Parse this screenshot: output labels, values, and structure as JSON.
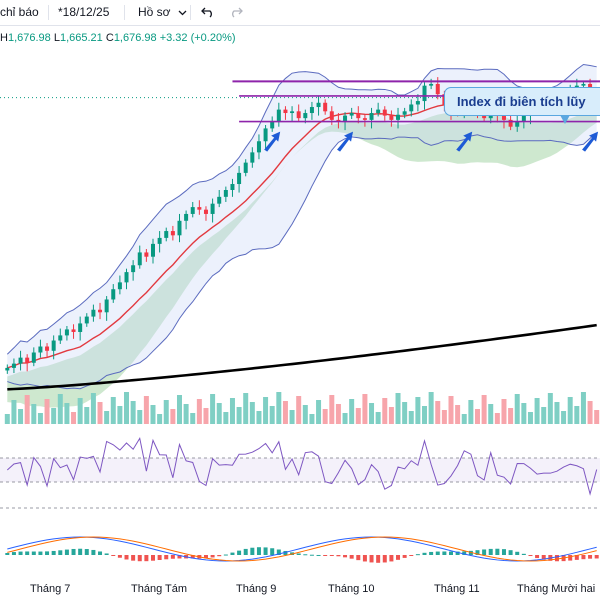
{
  "toolbar": {
    "indicators_label": "chỉ báo",
    "snapshot_label": "*18/12/25",
    "profile_label": "Hồ sơ",
    "undo_icon": "undo-icon",
    "redo_icon": "redo-icon"
  },
  "ohlc": {
    "h_key": "H",
    "h_val": "1,676.98",
    "l_key": "L",
    "l_val": "1,665.21",
    "c_key": "C",
    "c_val": "1,676.98",
    "change": "+3.32 (+0.20%)"
  },
  "annotation": {
    "text": "Index đi biên tích lũy"
  },
  "colors": {
    "up": "#089981",
    "down": "#f23645",
    "ma_short": "#e2393f",
    "ma_long": "#000000",
    "band": "#5b6bbf",
    "channel": "#8e24aa",
    "arrow": "#1e5bd6",
    "cloud": "#a5d6a7"
  },
  "chart_data": {
    "type": "line",
    "x_tick_labels": [
      "Tháng 7",
      "Tháng Tám",
      "Tháng 9",
      "Tháng 10",
      "Tháng 11",
      "Tháng Mười hai"
    ],
    "close": [
      1360,
      1365,
      1372,
      1366,
      1378,
      1385,
      1380,
      1392,
      1398,
      1405,
      1402,
      1412,
      1420,
      1428,
      1425,
      1440,
      1452,
      1460,
      1472,
      1480,
      1495,
      1490,
      1505,
      1512,
      1520,
      1515,
      1532,
      1540,
      1548,
      1545,
      1540,
      1552,
      1560,
      1568,
      1575,
      1588,
      1600,
      1612,
      1625,
      1640,
      1648,
      1662,
      1658,
      1660,
      1652,
      1658,
      1665,
      1670,
      1660,
      1650,
      1648,
      1655,
      1658,
      1652,
      1650,
      1658,
      1662,
      1655,
      1650,
      1656,
      1660,
      1668,
      1672,
      1690,
      1692,
      1680,
      1668,
      1660,
      1658,
      1665,
      1670,
      1662,
      1652,
      1660,
      1655,
      1650,
      1642,
      1648,
      1655,
      1660,
      1662,
      1665,
      1668,
      1672,
      1678,
      1685,
      1690,
      1692,
      1677,
      1676
    ],
    "channel_upper": 1695,
    "channel_lower": 1648,
    "latest": {
      "high": 1676.98,
      "low": 1665.21,
      "close": 1676.98,
      "change": 3.32,
      "change_pct": 0.2
    },
    "ylim": [
      1340,
      1720
    ]
  }
}
